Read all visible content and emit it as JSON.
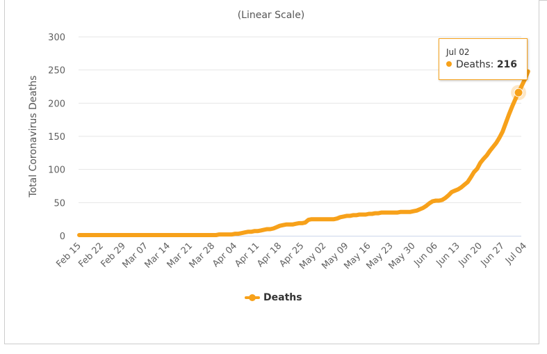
{
  "chart_data": {
    "type": "line",
    "subtitle": "(Linear Scale)",
    "ylabel": "Total Coronavirus Deaths",
    "xlabel": "",
    "ylim": [
      0,
      300
    ],
    "yticks": [
      0,
      50,
      100,
      150,
      200,
      250,
      300
    ],
    "xticks": [
      "Feb 15",
      "Feb 22",
      "Feb 29",
      "Mar 07",
      "Mar 14",
      "Mar 21",
      "Mar 28",
      "Apr 04",
      "Apr 11",
      "Apr 18",
      "Apr 25",
      "May 02",
      "May 09",
      "May 16",
      "May 23",
      "May 30",
      "Jun 06",
      "Jun 13",
      "Jun 20",
      "Jun 27",
      "Jul 04"
    ],
    "grid": true,
    "legend_position": "bottom",
    "color": "#f7a11a",
    "series": [
      {
        "name": "Deaths",
        "values": [
          1,
          1,
          1,
          1,
          1,
          1,
          1,
          1,
          1,
          1,
          1,
          1,
          1,
          1,
          1,
          1,
          1,
          1,
          1,
          1,
          1,
          1,
          1,
          1,
          1,
          1,
          1,
          1,
          1,
          1,
          1,
          1,
          1,
          1,
          1,
          1,
          1,
          1,
          1,
          1,
          1,
          1,
          1,
          1,
          2,
          2,
          2,
          2,
          2,
          3,
          3,
          4,
          5,
          6,
          6,
          7,
          7,
          8,
          9,
          10,
          10,
          11,
          13,
          15,
          16,
          17,
          17,
          17,
          18,
          19,
          19,
          20,
          24,
          25,
          25,
          25,
          25,
          25,
          25,
          25,
          25,
          26,
          28,
          29,
          30,
          30,
          31,
          31,
          32,
          32,
          32,
          33,
          33,
          34,
          34,
          35,
          35,
          35,
          35,
          35,
          35,
          36,
          36,
          36,
          36,
          37,
          38,
          40,
          42,
          45,
          49,
          52,
          53,
          53,
          54,
          57,
          61,
          66,
          68,
          70,
          73,
          77,
          81,
          88,
          96,
          101,
          110,
          116,
          121,
          128,
          134,
          140,
          148,
          157,
          170,
          183,
          195,
          206,
          216,
          226,
          236,
          248
        ]
      }
    ]
  },
  "tooltip": {
    "date": "Jul 02",
    "series": "Deaths",
    "value": "216"
  }
}
